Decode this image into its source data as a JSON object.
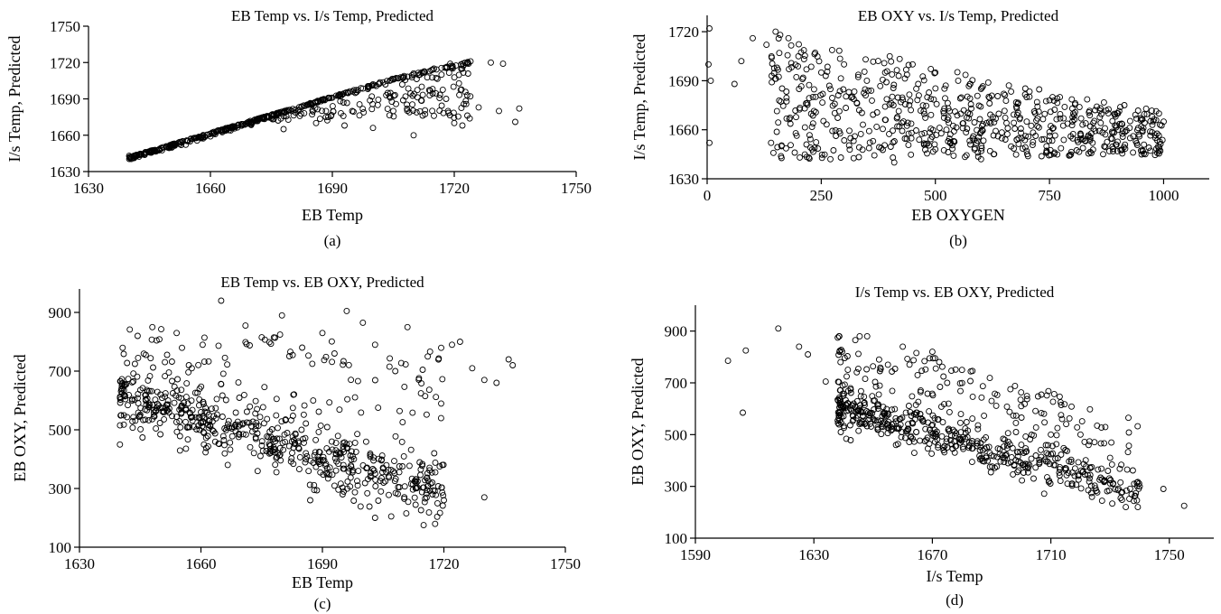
{
  "chart_data": [
    {
      "id": "a",
      "type": "scatter",
      "title": "EB Temp vs.  I/s Temp, Predicted",
      "xlabel": "EB Temp",
      "ylabel": "I/s Temp, Predicted",
      "panel_label": "(a)",
      "xlim": [
        1630,
        1750
      ],
      "ylim": [
        1630,
        1750
      ],
      "xticks": [
        1630,
        1660,
        1690,
        1720,
        1750
      ],
      "yticks": [
        1630,
        1660,
        1690,
        1720,
        1750
      ],
      "marker": "open-circle",
      "grid": false,
      "n_points": 560,
      "points": [
        [
          1640,
          1643
        ],
        [
          1644,
          1646
        ],
        [
          1650,
          1651
        ],
        [
          1655,
          1655
        ],
        [
          1660,
          1659
        ],
        [
          1665,
          1664
        ],
        [
          1670,
          1669
        ],
        [
          1675,
          1674
        ],
        [
          1680,
          1680
        ],
        [
          1685,
          1685
        ],
        [
          1690,
          1691
        ],
        [
          1695,
          1696
        ],
        [
          1700,
          1702
        ],
        [
          1705,
          1706
        ],
        [
          1710,
          1711
        ],
        [
          1715,
          1715
        ],
        [
          1719,
          1719
        ],
        [
          1724,
          1721
        ],
        [
          1729,
          1720
        ],
        [
          1732,
          1719
        ],
        [
          1678,
          1665
        ],
        [
          1686,
          1670
        ],
        [
          1693,
          1668
        ],
        [
          1700,
          1666
        ],
        [
          1705,
          1680
        ],
        [
          1710,
          1660
        ],
        [
          1715,
          1676
        ],
        [
          1720,
          1670
        ],
        [
          1722,
          1668
        ],
        [
          1726,
          1683
        ],
        [
          1731,
          1680
        ],
        [
          1735,
          1671
        ],
        [
          1736,
          1682
        ],
        [
          1712,
          1700
        ],
        [
          1718,
          1690
        ],
        [
          1708,
          1692
        ]
      ]
    },
    {
      "id": "b",
      "type": "scatter",
      "title": "EB OXY vs.  I/s Temp, Predicted",
      "xlabel": "EB OXYGEN",
      "ylabel": "I/s Temp, Predicted",
      "panel_label": "(b)",
      "xlim": [
        0,
        1100
      ],
      "ylim": [
        1630,
        1730
      ],
      "xticks": [
        0,
        250,
        500,
        750,
        1000
      ],
      "yticks": [
        1630,
        1660,
        1690,
        1720
      ],
      "marker": "open-circle",
      "grid": false,
      "n_points": 700,
      "points": [
        [
          5,
          1722
        ],
        [
          3,
          1700
        ],
        [
          8,
          1690
        ],
        [
          5,
          1652
        ],
        [
          60,
          1688
        ],
        [
          75,
          1702
        ],
        [
          100,
          1716
        ],
        [
          130,
          1712
        ],
        [
          150,
          1720
        ],
        [
          160,
          1718
        ],
        [
          140,
          1652
        ],
        [
          200,
          1705
        ],
        [
          250,
          1695
        ],
        [
          300,
          1700
        ],
        [
          350,
          1690
        ],
        [
          400,
          1705
        ],
        [
          450,
          1700
        ],
        [
          500,
          1695
        ],
        [
          550,
          1690
        ],
        [
          600,
          1685
        ],
        [
          650,
          1682
        ],
        [
          700,
          1680
        ],
        [
          750,
          1678
        ],
        [
          800,
          1673
        ],
        [
          850,
          1672
        ],
        [
          900,
          1670
        ],
        [
          950,
          1667
        ],
        [
          1000,
          1665
        ],
        [
          270,
          1642
        ],
        [
          410,
          1640
        ],
        [
          600,
          1642
        ],
        [
          700,
          1647
        ],
        [
          960,
          1645
        ],
        [
          230,
          1648
        ],
        [
          500,
          1648
        ]
      ]
    },
    {
      "id": "c",
      "type": "scatter",
      "title": "EB Temp vs.  EB OXY, Predicted",
      "xlabel": "EB Temp",
      "ylabel": "EB OXY, Predicted",
      "panel_label": "(c)",
      "xlim": [
        1630,
        1750
      ],
      "ylim": [
        100,
        980
      ],
      "xticks": [
        1630,
        1660,
        1690,
        1720,
        1750
      ],
      "yticks": [
        100,
        300,
        500,
        700,
        900
      ],
      "marker": "open-circle",
      "grid": false,
      "n_points": 700,
      "points": [
        [
          1640,
          450
        ],
        [
          1641,
          650
        ],
        [
          1643,
          600
        ],
        [
          1648,
          850
        ],
        [
          1650,
          620
        ],
        [
          1654,
          830
        ],
        [
          1657,
          720
        ],
        [
          1660,
          560
        ],
        [
          1665,
          940
        ],
        [
          1671,
          855
        ],
        [
          1675,
          815
        ],
        [
          1680,
          890
        ],
        [
          1685,
          780
        ],
        [
          1690,
          830
        ],
        [
          1693,
          760
        ],
        [
          1696,
          905
        ],
        [
          1700,
          865
        ],
        [
          1703,
          790
        ],
        [
          1708,
          700
        ],
        [
          1711,
          850
        ],
        [
          1716,
          750
        ],
        [
          1722,
          790
        ],
        [
          1724,
          800
        ],
        [
          1727,
          710
        ],
        [
          1730,
          670
        ],
        [
          1733,
          660
        ],
        [
          1736,
          740
        ],
        [
          1737,
          720
        ],
        [
          1687,
          260
        ],
        [
          1695,
          280
        ],
        [
          1703,
          200
        ],
        [
          1707,
          205
        ],
        [
          1715,
          175
        ],
        [
          1720,
          260
        ],
        [
          1730,
          270
        ]
      ]
    },
    {
      "id": "d",
      "type": "scatter",
      "title": "I/s Temp vs.  EB OXY, Predicted",
      "xlabel": "I/s Temp",
      "ylabel": "EB OXY, Predicted",
      "panel_label": "(d)",
      "xlim": [
        1590,
        1765
      ],
      "ylim": [
        100,
        1000
      ],
      "xticks": [
        1590,
        1630,
        1670,
        1710,
        1750
      ],
      "yticks": [
        100,
        300,
        500,
        700,
        900
      ],
      "marker": "open-circle",
      "grid": false,
      "n_points": 650,
      "points": [
        [
          1601,
          785
        ],
        [
          1606,
          585
        ],
        [
          1607,
          825
        ],
        [
          1618,
          910
        ],
        [
          1625,
          840
        ],
        [
          1628,
          810
        ],
        [
          1634,
          705
        ],
        [
          1640,
          650
        ],
        [
          1644,
          865
        ],
        [
          1648,
          880
        ],
        [
          1652,
          790
        ],
        [
          1655,
          770
        ],
        [
          1660,
          840
        ],
        [
          1665,
          730
        ],
        [
          1670,
          820
        ],
        [
          1675,
          700
        ],
        [
          1680,
          750
        ],
        [
          1690,
          630
        ],
        [
          1700,
          610
        ],
        [
          1710,
          500
        ],
        [
          1720,
          500
        ],
        [
          1730,
          410
        ],
        [
          1740,
          300
        ],
        [
          1748,
          290
        ],
        [
          1755,
          225
        ]
      ]
    }
  ]
}
